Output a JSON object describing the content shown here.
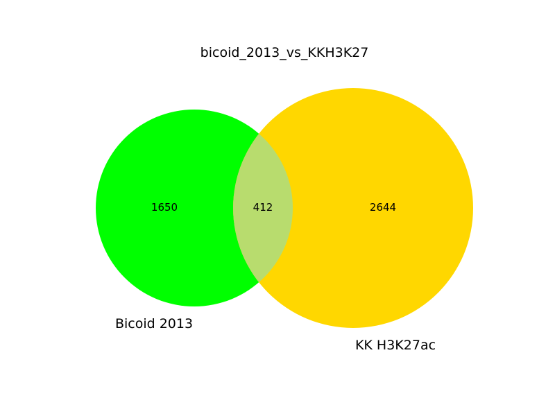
{
  "title": "bicoid_2013_vs_KKH3K27",
  "sets": [
    {
      "name": "Bicoid 2013",
      "color": "#00ff00"
    },
    {
      "name": "KK H3K27ac",
      "color": "#ffd700"
    }
  ],
  "overlap_color": "#b8dc6e",
  "counts": {
    "left_only": "1650",
    "both": "412",
    "right_only": "2644"
  },
  "chart_data": {
    "type": "venn",
    "title": "bicoid_2013_vs_KKH3K27",
    "sets": [
      "Bicoid 2013",
      "KK H3K27ac"
    ],
    "regions": [
      {
        "sets": [
          "Bicoid 2013"
        ],
        "value": 1650
      },
      {
        "sets": [
          "Bicoid 2013",
          "KK H3K27ac"
        ],
        "value": 412
      },
      {
        "sets": [
          "KK H3K27ac"
        ],
        "value": 2644
      }
    ]
  }
}
